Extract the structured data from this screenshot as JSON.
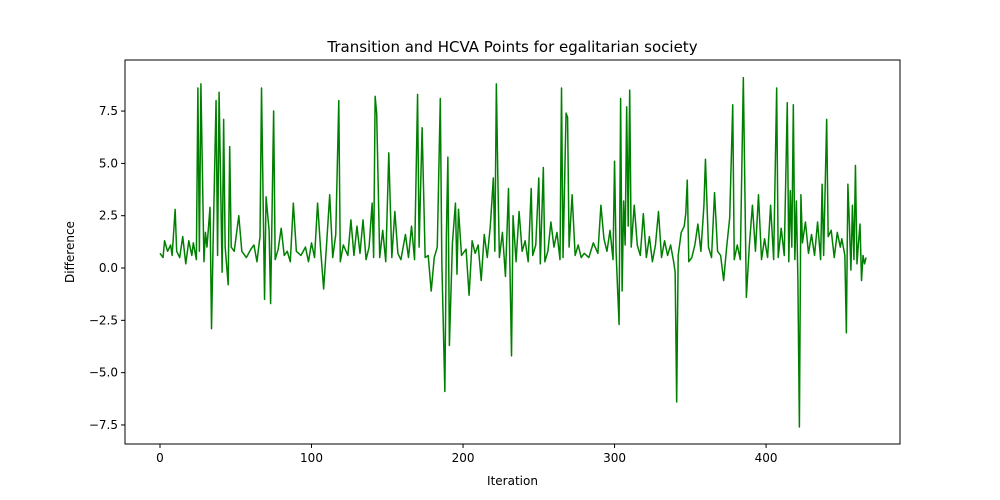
{
  "chart_data": {
    "type": "line",
    "title": "Transition and HCVA Points for egalitarian society",
    "x_label": "Iteration",
    "y_label": "Difference",
    "xlim": [
      -23.1,
      488.4
    ],
    "ylim": [
      -8.41,
      9.94
    ],
    "xticks": [
      0,
      100,
      200,
      300,
      400
    ],
    "yticks": [
      {
        "value": -7.5,
        "label": "−7.5"
      },
      {
        "value": -5,
        "label": "−5.0"
      },
      {
        "value": -2.5,
        "label": "−2.5"
      },
      {
        "value": 0,
        "label": "0.0"
      },
      2.5,
      {
        "value": 5,
        "label": "5.0"
      },
      7.5
    ],
    "grid": false,
    "series": [
      {
        "name": "Difference",
        "color": "#008000",
        "x": [
          0,
          2,
          3,
          5,
          7,
          8,
          10,
          11,
          13,
          15,
          17,
          19,
          21,
          22,
          24,
          25,
          26,
          27,
          29,
          30,
          31,
          33,
          34,
          35,
          37,
          38,
          39,
          41,
          42,
          43,
          45,
          46,
          47,
          49,
          52,
          54,
          57,
          60,
          62,
          64,
          66,
          67,
          69,
          70,
          72,
          73,
          75,
          76,
          78,
          80,
          82,
          84,
          86,
          88,
          90,
          93,
          96,
          98,
          100,
          102,
          104,
          106,
          108,
          110,
          112,
          114,
          116,
          118,
          119,
          121,
          124,
          126,
          128,
          130,
          132,
          134,
          136,
          138,
          140,
          141,
          142,
          143,
          145,
          147,
          149,
          151,
          153,
          155,
          157,
          159,
          162,
          164,
          166,
          168,
          170,
          171,
          173,
          175,
          177,
          179,
          181,
          183,
          185,
          186,
          188,
          189,
          190,
          191,
          193,
          195,
          196,
          197,
          199,
          202,
          204,
          206,
          208,
          210,
          212,
          214,
          216,
          218,
          220,
          221,
          222,
          223,
          224,
          226,
          228,
          230,
          232,
          233,
          235,
          237,
          239,
          241,
          243,
          245,
          246,
          248,
          250,
          251,
          253,
          254,
          256,
          258,
          260,
          262,
          264,
          265,
          266,
          268,
          269,
          270,
          272,
          274,
          276,
          278,
          280,
          283,
          286,
          289,
          291,
          293,
          295,
          297,
          299,
          300,
          301,
          302,
          303,
          304,
          305,
          306,
          307,
          308,
          309,
          310,
          311,
          313,
          315,
          317,
          319,
          321,
          323,
          325,
          327,
          329,
          331,
          333,
          335,
          337,
          339,
          340,
          341,
          342,
          344,
          346,
          347,
          348,
          349,
          351,
          353,
          355,
          357,
          359,
          360,
          362,
          364,
          366,
          368,
          370,
          372,
          374,
          376,
          378,
          379,
          381,
          383,
          385,
          387,
          389,
          391,
          393,
          395,
          397,
          399,
          401,
          403,
          405,
          407,
          408,
          410,
          412,
          414,
          415,
          416,
          417,
          418,
          419,
          420,
          421,
          422,
          423,
          424,
          426,
          428,
          430,
          432,
          434,
          436,
          437,
          438,
          440,
          441,
          443,
          445,
          447,
          449,
          450,
          452,
          453,
          454,
          455,
          456,
          457,
          458,
          459,
          460,
          461,
          462,
          463,
          464,
          465,
          466
        ],
        "values": [
          0.7,
          0.5,
          1.3,
          0.8,
          1.1,
          0.6,
          2.8,
          0.8,
          0.5,
          1.5,
          0.2,
          1.3,
          0.6,
          1.2,
          0.4,
          8.6,
          0.8,
          8.8,
          0.3,
          1.7,
          1.0,
          2.9,
          -2.9,
          1.0,
          8.0,
          0.6,
          8.4,
          -0.2,
          7.1,
          1.0,
          -0.8,
          5.8,
          1.0,
          0.8,
          2.5,
          0.8,
          0.5,
          0.9,
          1.1,
          0.3,
          1.5,
          8.6,
          -1.5,
          3.4,
          1.8,
          -1.7,
          7.5,
          0.4,
          0.9,
          1.9,
          0.6,
          0.8,
          0.3,
          3.1,
          0.8,
          0.6,
          1.0,
          0.3,
          1.2,
          0.5,
          3.1,
          0.9,
          -1.0,
          1.2,
          3.5,
          0.5,
          1.6,
          8.0,
          0.3,
          1.1,
          0.6,
          2.3,
          0.6,
          2.0,
          0.7,
          2.3,
          0.4,
          1.0,
          3.1,
          0.5,
          8.2,
          7.4,
          0.5,
          1.8,
          0.3,
          5.5,
          0.5,
          2.7,
          0.7,
          0.4,
          1.6,
          0.5,
          2.0,
          0.4,
          8.3,
          1.0,
          6.7,
          0.5,
          0.6,
          -1.1,
          0.5,
          1.0,
          8.1,
          0.3,
          -5.9,
          1.5,
          5.3,
          -3.7,
          1.2,
          3.1,
          -0.3,
          2.8,
          0.6,
          0.9,
          -1.3,
          1.3,
          0.7,
          1.1,
          -0.6,
          1.6,
          0.5,
          2.0,
          4.3,
          0.8,
          8.8,
          4.2,
          0.5,
          1.7,
          -0.4,
          3.8,
          -4.2,
          2.5,
          0.3,
          2.7,
          0.8,
          1.3,
          0.3,
          3.8,
          0.6,
          1.1,
          4.3,
          0.2,
          4.8,
          0.3,
          0.8,
          2.2,
          1.0,
          1.7,
          0.4,
          8.6,
          0.5,
          7.4,
          7.2,
          1.0,
          3.5,
          0.6,
          1.1,
          0.5,
          0.7,
          0.5,
          1.2,
          0.7,
          3.0,
          1.4,
          0.8,
          1.8,
          0.4,
          5.1,
          0.8,
          -1.0,
          -2.7,
          8.1,
          -1.1,
          3.2,
          1.1,
          7.7,
          2.0,
          8.5,
          1.0,
          3.0,
          1.1,
          0.6,
          2.6,
          0.5,
          1.5,
          0.3,
          1.1,
          2.7,
          0.5,
          1.3,
          0.6,
          1.1,
          0.3,
          -0.2,
          -6.4,
          0.6,
          1.7,
          2.0,
          2.6,
          4.2,
          0.3,
          0.5,
          1.1,
          2.1,
          0.8,
          3.0,
          5.2,
          1.0,
          0.5,
          3.6,
          0.8,
          0.6,
          -0.6,
          1.0,
          2.4,
          7.8,
          0.4,
          1.1,
          0.4,
          9.1,
          -1.4,
          1.1,
          3.0,
          0.8,
          3.5,
          0.4,
          1.4,
          0.5,
          3.0,
          0.4,
          8.6,
          0.5,
          1.9,
          0.6,
          7.9,
          0.3,
          3.7,
          1.0,
          7.8,
          0.4,
          3.2,
          -0.5,
          -7.6,
          3.5,
          1.2,
          2.2,
          0.7,
          1.6,
          0.6,
          2.2,
          0.4,
          4.0,
          0.6,
          7.1,
          1.5,
          1.8,
          0.5,
          1.7,
          1.0,
          1.4,
          0.6,
          -3.1,
          4.0,
          2.1,
          -0.1,
          3.0,
          0.4,
          4.9,
          0.2,
          1.2,
          2.1,
          -0.6,
          0.6,
          0.2,
          0.5
        ]
      }
    ]
  }
}
